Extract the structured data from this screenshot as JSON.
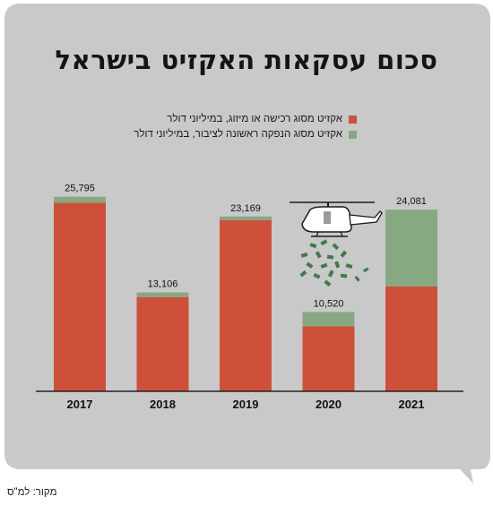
{
  "title": "סכום עסקאות האקזיט בישראל",
  "source": "מקור: למ\"ס",
  "colors": {
    "background": "#c9c9c9",
    "ma": "#cf5038",
    "ipo": "#86a982",
    "axis": "#222222"
  },
  "chart_data": {
    "type": "bar",
    "stacked": true,
    "categories": [
      "2017",
      "2018",
      "2019",
      "2020",
      "2021"
    ],
    "series": [
      {
        "name": "אקזיט מסוג רכישה או מיזוג, במיליוני דולר",
        "color": "#cf5038",
        "values": [
          25000,
          12500,
          22700,
          8600,
          13900
        ]
      },
      {
        "name": "אקזיט מסוג הנפקה ראשונה לציבור, במיליוני דולר",
        "color": "#86a982",
        "values": [
          795,
          606,
          469,
          1920,
          10181
        ]
      }
    ],
    "totals_labels": [
      "25,795",
      "13,106",
      "23,169",
      "10,520",
      "24,081"
    ],
    "ylim": [
      0,
      26000
    ],
    "legend": "top-right",
    "grid": false,
    "annotation_icon": "helicopter-dropping-money-icon"
  }
}
